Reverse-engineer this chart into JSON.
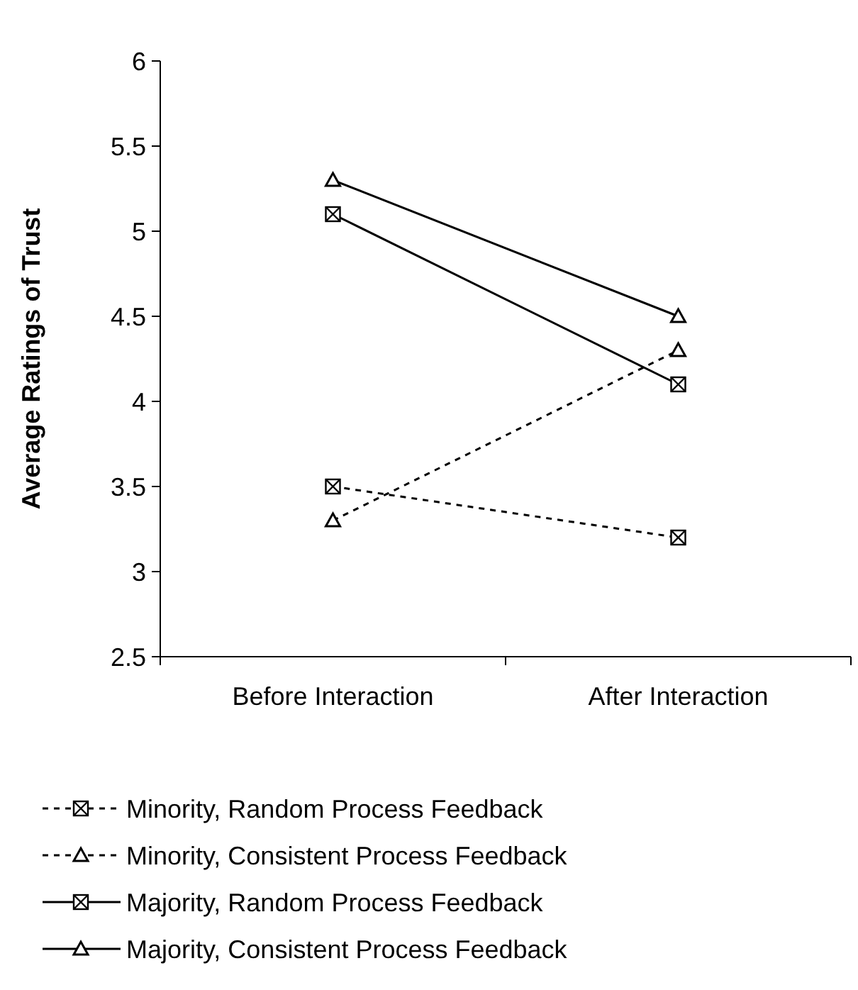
{
  "chart_data": {
    "type": "line",
    "ylabel": "Average Ratings of Trust",
    "categories": [
      "Before Interaction",
      "After Interaction"
    ],
    "ylim": [
      2.5,
      6
    ],
    "yticks": [
      2.5,
      3,
      3.5,
      4,
      4.5,
      5,
      5.5,
      6
    ],
    "grid": false,
    "legend": "bottom",
    "series": [
      {
        "name": "Minority, Random Process Feedback",
        "color": "#000000",
        "values": [
          3.5,
          3.2
        ],
        "line_style": "dashed",
        "marker": "square"
      },
      {
        "name": "Minority, Consistent Process Feedback",
        "color": "#000000",
        "values": [
          3.3,
          4.3
        ],
        "line_style": "dashed",
        "marker": "triangle"
      },
      {
        "name": "Majority, Random Process Feedback",
        "color": "#000000",
        "values": [
          5.1,
          4.1
        ],
        "line_style": "solid",
        "marker": "square"
      },
      {
        "name": "Majority, Consistent Process Feedback",
        "color": "#000000",
        "values": [
          5.3,
          4.5
        ],
        "line_style": "solid",
        "marker": "triangle"
      }
    ]
  }
}
